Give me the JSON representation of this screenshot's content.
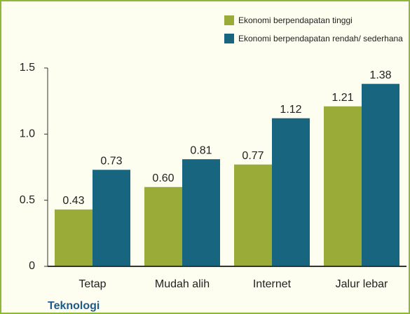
{
  "chart_data": {
    "type": "bar",
    "x_label": "Teknologi",
    "categories": [
      "Tetap",
      "Mudah alih",
      "Internet",
      "Jalur lebar"
    ],
    "series": [
      {
        "name": "Ekonomi berpendapatan tinggi",
        "color": "#9aab38",
        "values": [
          0.43,
          0.6,
          0.77,
          1.21
        ],
        "value_labels": [
          "0.43",
          "0.60",
          "0.77",
          "1.21"
        ]
      },
      {
        "name": "Ekonomi berpendapatan rendah/ sederhana",
        "color": "#17657f",
        "values": [
          0.73,
          0.81,
          1.12,
          1.38
        ],
        "value_labels": [
          "0.73",
          "0.81",
          "1.12",
          "1.38"
        ]
      }
    ],
    "ylim": [
      0,
      1.5
    ],
    "yticks": [
      0,
      0.5,
      {
        "value": 1,
        "label": "1.0"
      },
      1.5
    ],
    "legend": "top-right"
  }
}
